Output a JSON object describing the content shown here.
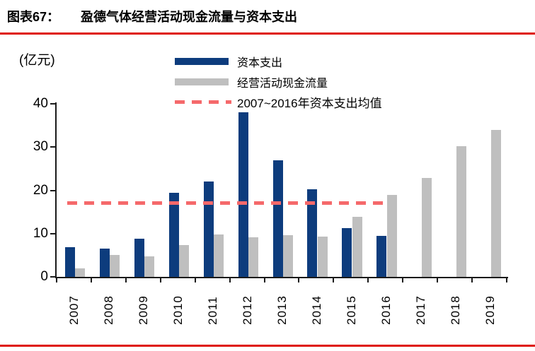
{
  "header": {
    "figure_label": "图表67：",
    "title": "盈德气体经营活动现金流量与资本支出"
  },
  "legend": {
    "items": [
      {
        "id": "capex",
        "swatch": "bar",
        "color": "#0d3c7d",
        "label": "资本支出"
      },
      {
        "id": "ocf",
        "swatch": "bar",
        "color": "#bfbfbf",
        "label": "经营活动现金流量"
      },
      {
        "id": "capex-mean",
        "swatch": "dash",
        "color": "#f5696b",
        "label": "2007~2016年资本支出均值"
      }
    ]
  },
  "chart_data": {
    "type": "bar",
    "title": "盈德气体经营活动现金流量与资本支出",
    "ylabel": "(亿元)",
    "categories": [
      "2007",
      "2008",
      "2009",
      "2010",
      "2011",
      "2012",
      "2013",
      "2014",
      "2015",
      "2016",
      "2017",
      "2018",
      "2019"
    ],
    "series": [
      {
        "id": "capex",
        "name": "资本支出",
        "color": "#0d3c7d",
        "values": [
          6.9,
          6.6,
          8.8,
          19.5,
          22.0,
          38.0,
          27.0,
          20.3,
          11.2,
          9.4,
          null,
          null,
          null
        ]
      },
      {
        "id": "ocf",
        "name": "经营活动现金流量",
        "color": "#bfbfbf",
        "values": [
          2.0,
          5.0,
          4.7,
          7.3,
          9.8,
          9.2,
          9.7,
          9.3,
          13.8,
          18.9,
          22.9,
          30.2,
          33.9
        ]
      }
    ],
    "reference_line": {
      "label": "2007~2016年资本支出均值",
      "value": 17.0,
      "color": "#f5696b",
      "span_categories": [
        "2007",
        "2016"
      ]
    },
    "ylim": [
      0,
      40
    ],
    "yticks": [
      0,
      10,
      20,
      30,
      40
    ],
    "grid": false,
    "legend_position": "top-center"
  },
  "colors": {
    "rule": "#df1309",
    "axis": "#1a1a1a"
  }
}
